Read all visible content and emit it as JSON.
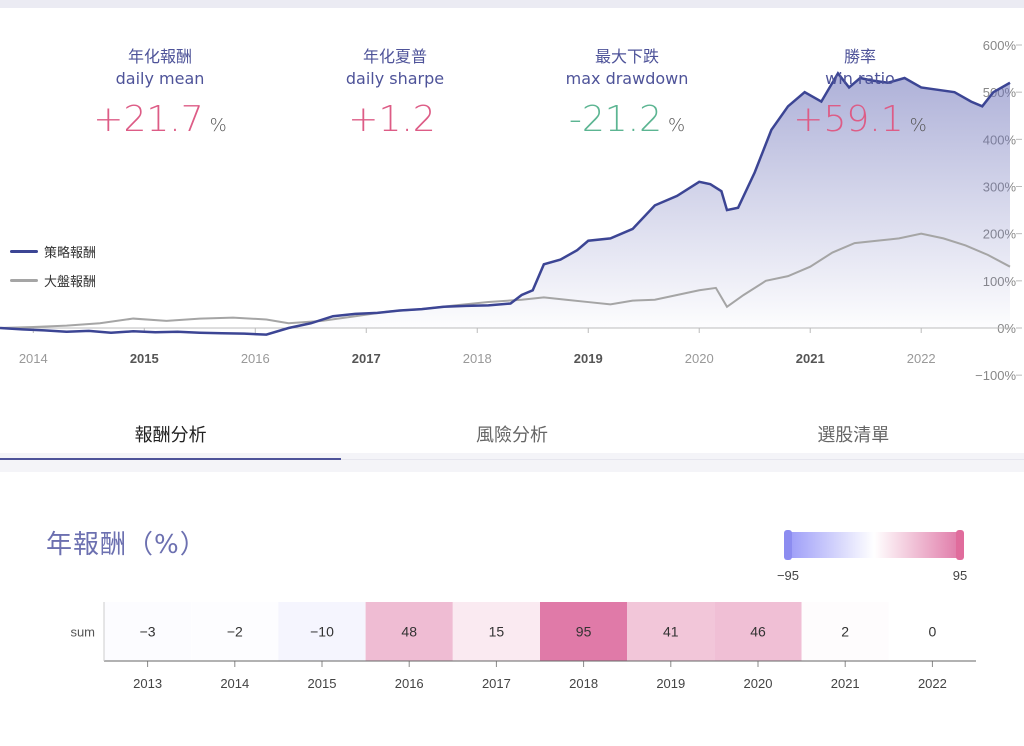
{
  "stats": [
    {
      "zh": "年化報酬",
      "en": "daily mean",
      "value": "+21.7",
      "unit": "%",
      "tone": "pos"
    },
    {
      "zh": "年化夏普",
      "en": "daily sharpe",
      "value": "+1.2",
      "unit": "",
      "tone": "pos"
    },
    {
      "zh": "最大下跌",
      "en": "max drawdown",
      "value": "-21.2",
      "unit": "%",
      "tone": "neg"
    },
    {
      "zh": "勝率",
      "en": "win ratio",
      "value": "+59.1",
      "unit": "%",
      "tone": "pos"
    }
  ],
  "legend": {
    "strategy": "策略報酬",
    "market": "大盤報酬"
  },
  "colors": {
    "strategy": "#3c4594",
    "market": "#a5a5a5",
    "positive": "#dd5c86",
    "negative": "#5cb592",
    "heat_low": "#9c9cf8",
    "heat_high": "#e07aa8"
  },
  "tabs": [
    {
      "label": "報酬分析",
      "active": true
    },
    {
      "label": "風險分析",
      "active": false
    },
    {
      "label": "選股清單",
      "active": false
    }
  ],
  "heatmap_section": {
    "title": "年報酬（%）"
  },
  "chart_data": [
    {
      "type": "line",
      "x_ticks": [
        "2014",
        "2015",
        "2016",
        "2017",
        "2018",
        "2019",
        "2020",
        "2021",
        "2022"
      ],
      "bold_x_ticks": [
        "2015",
        "2017",
        "2019",
        "2021"
      ],
      "y_ticks": [
        "600%",
        "500%",
        "400%",
        "300%",
        "200%",
        "100%",
        "0%",
        "-100%"
      ],
      "ylim": [
        -100,
        600
      ],
      "xlim": [
        2013.7,
        2022.8
      ],
      "series": [
        {
          "name": "策略報酬",
          "x": [
            2013.7,
            2013.9,
            2014.1,
            2014.3,
            2014.5,
            2014.7,
            2014.9,
            2015.1,
            2015.3,
            2015.5,
            2015.7,
            2015.9,
            2016.1,
            2016.3,
            2016.5,
            2016.7,
            2016.9,
            2017.1,
            2017.3,
            2017.5,
            2017.7,
            2017.9,
            2018.1,
            2018.3,
            2018.4,
            2018.5,
            2018.6,
            2018.75,
            2018.9,
            2019.0,
            2019.2,
            2019.4,
            2019.6,
            2019.8,
            2020.0,
            2020.1,
            2020.2,
            2020.25,
            2020.35,
            2020.5,
            2020.65,
            2020.8,
            2020.95,
            2021.1,
            2021.25,
            2021.35,
            2021.45,
            2021.55,
            2021.7,
            2021.85,
            2022.0,
            2022.15,
            2022.3,
            2022.45,
            2022.55,
            2022.65,
            2022.8
          ],
          "values": [
            0,
            -3,
            -5,
            -8,
            -6,
            -10,
            -7,
            -9,
            -8,
            -10,
            -11,
            -12,
            -14,
            0,
            10,
            25,
            30,
            32,
            37,
            40,
            45,
            47,
            48,
            52,
            70,
            80,
            135,
            145,
            165,
            185,
            190,
            210,
            260,
            280,
            310,
            305,
            290,
            250,
            255,
            330,
            420,
            470,
            500,
            480,
            540,
            510,
            530,
            525,
            520,
            530,
            510,
            505,
            500,
            480,
            470,
            500,
            520
          ]
        },
        {
          "name": "大盤報酬",
          "x": [
            2013.7,
            2014.0,
            2014.3,
            2014.6,
            2014.9,
            2015.2,
            2015.5,
            2015.8,
            2016.1,
            2016.3,
            2016.6,
            2016.9,
            2017.2,
            2017.5,
            2017.8,
            2018.1,
            2018.4,
            2018.6,
            2018.8,
            2019.0,
            2019.2,
            2019.4,
            2019.6,
            2019.8,
            2020.0,
            2020.15,
            2020.25,
            2020.4,
            2020.6,
            2020.8,
            2021.0,
            2021.2,
            2021.4,
            2021.6,
            2021.8,
            2022.0,
            2022.2,
            2022.4,
            2022.6,
            2022.8
          ],
          "values": [
            0,
            2,
            5,
            10,
            20,
            15,
            20,
            22,
            18,
            10,
            15,
            25,
            35,
            40,
            48,
            55,
            60,
            65,
            60,
            55,
            50,
            58,
            60,
            70,
            80,
            85,
            45,
            70,
            100,
            110,
            130,
            160,
            180,
            185,
            190,
            200,
            190,
            175,
            155,
            130
          ]
        }
      ]
    },
    {
      "type": "heatmap",
      "row_label": "sum",
      "categories": [
        "2013",
        "2014",
        "2015",
        "2016",
        "2017",
        "2018",
        "2019",
        "2020",
        "2021",
        "2022"
      ],
      "values": [
        -3,
        -2,
        -10,
        48,
        15,
        95,
        41,
        46,
        2,
        0
      ],
      "value_labels": [
        "−3",
        "−2",
        "−10",
        "48",
        "15",
        "95",
        "41",
        "46",
        "2",
        "0"
      ],
      "range": [
        -95,
        95
      ],
      "range_labels": [
        "−95",
        "95"
      ]
    }
  ]
}
